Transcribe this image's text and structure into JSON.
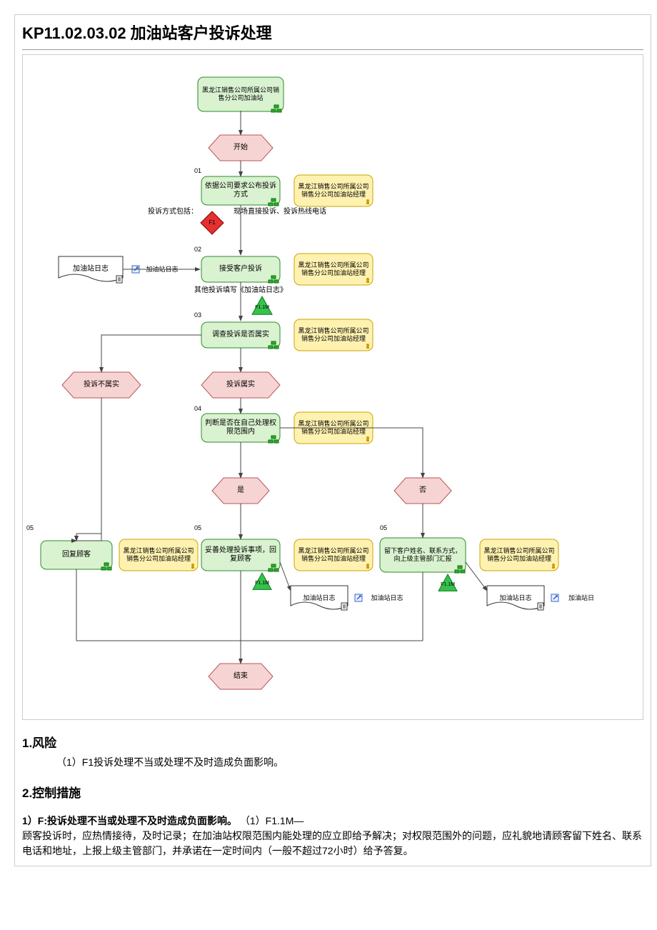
{
  "title": "KP11.02.03.02 加油站客户投诉处理",
  "colors": {
    "process_fill": "#d9f2d0",
    "process_stroke": "#2e8b2e",
    "terminator_fill": "#f6d4d4",
    "terminator_stroke": "#b55",
    "role_fill": "#fff2b0",
    "role_stroke": "#c9a400",
    "risk_fill": "#e53030",
    "control_fill": "#35c24a",
    "control_stroke": "#0a7a1e",
    "doc_fill": "#ffffff",
    "edge": "#444"
  },
  "header_box": "黑龙江销售公司所属公司销售分公司加油站",
  "nodes": {
    "start": "开始",
    "n01_num": "01",
    "n01": "依据公司要求公布投诉方式",
    "n01_note": "投诉方式包括：",
    "n01_note2": "现场直接投诉、投诉热线电话",
    "risk": "F1",
    "n02_num": "02",
    "n02": "接受客户投诉",
    "n02_note": "其他投诉填写《加油站日志》",
    "ctrl": "F1.1M",
    "n03_num": "03",
    "n03": "调查投诉是否属实",
    "dec_no": "投诉不属实",
    "dec_yes": "投诉属实",
    "n04_num": "04",
    "n04": "判断是否在自己处理权限范围内",
    "yes": "是",
    "no": "否",
    "n05_num": "05",
    "n05a": "回复顾客",
    "n05b": "妥善处理投诉事项，回复顾客",
    "n05c": "留下客户姓名、联系方式，向上级主管部门汇报",
    "end": "结束"
  },
  "role": "黑龙江销售公司所属公司销售分公司加油站经理",
  "doc": "加油站日志",
  "doc_link": "加油站日志",
  "doc_link2": "加油站日",
  "sections": {
    "risk_h": "1.风险",
    "risk_1": "（1）F1投诉处理不当或处理不及时造成负面影响。",
    "ctrl_h": "2.控制措施",
    "ctrl_1_lead": "1）F:投诉处理不当或处理不及时造成负面影响。",
    "ctrl_1_tag": "（1）F1.1M—",
    "ctrl_1_body": "顾客投诉时，应热情接待，及时记录；在加油站权限范围内能处理的应立即给予解决；对权限范围外的问题，应礼貌地请顾客留下姓名、联系电话和地址，上报上级主管部门，并承诺在一定时间内（一般不超过72小时）给予答复。"
  }
}
